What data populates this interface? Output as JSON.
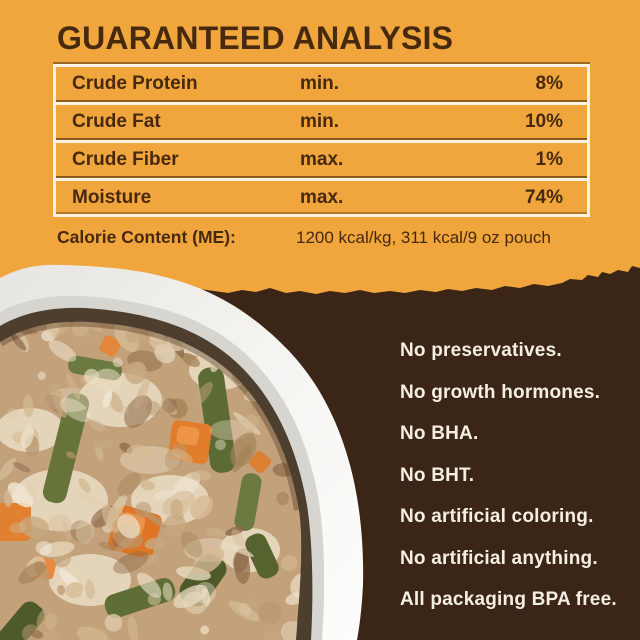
{
  "colors": {
    "orange": "#F0A63C",
    "brown": "#3B2516",
    "ink": "#46290F",
    "cream": "#FBF4E2",
    "claims_text": "#F5EFE3"
  },
  "analysis": {
    "title": "GUARANTEED ANALYSIS",
    "table": {
      "rows": [
        {
          "nutrient": "Crude Protein",
          "basis": "min.",
          "value": "8%"
        },
        {
          "nutrient": "Crude Fat",
          "basis": "min.",
          "value": "10%"
        },
        {
          "nutrient": "Crude Fiber",
          "basis": "max.",
          "value": "1%"
        },
        {
          "nutrient": "Moisture",
          "basis": "max.",
          "value": "74%"
        }
      ]
    },
    "calorie": {
      "label": "Calorie Content (ME):",
      "value": "1200 kcal/kg, 311 kcal/9 oz pouch"
    }
  },
  "claims": {
    "items": [
      "No preservatives.",
      "No growth hormones.",
      "No BHA.",
      "No BHT.",
      "No artificial coloring.",
      "No artificial anything.",
      "All packaging BPA free."
    ]
  },
  "photo": {
    "subject": "white bowl of fresh dog food with green beans and carrots",
    "food_palette": [
      "#E9DBC1",
      "#DFCCAB",
      "#D2B992",
      "#BA9A72",
      "#A58258",
      "#8F6B4A",
      "#F1E7D4",
      "#C7A87F",
      "#D7BB95"
    ]
  }
}
